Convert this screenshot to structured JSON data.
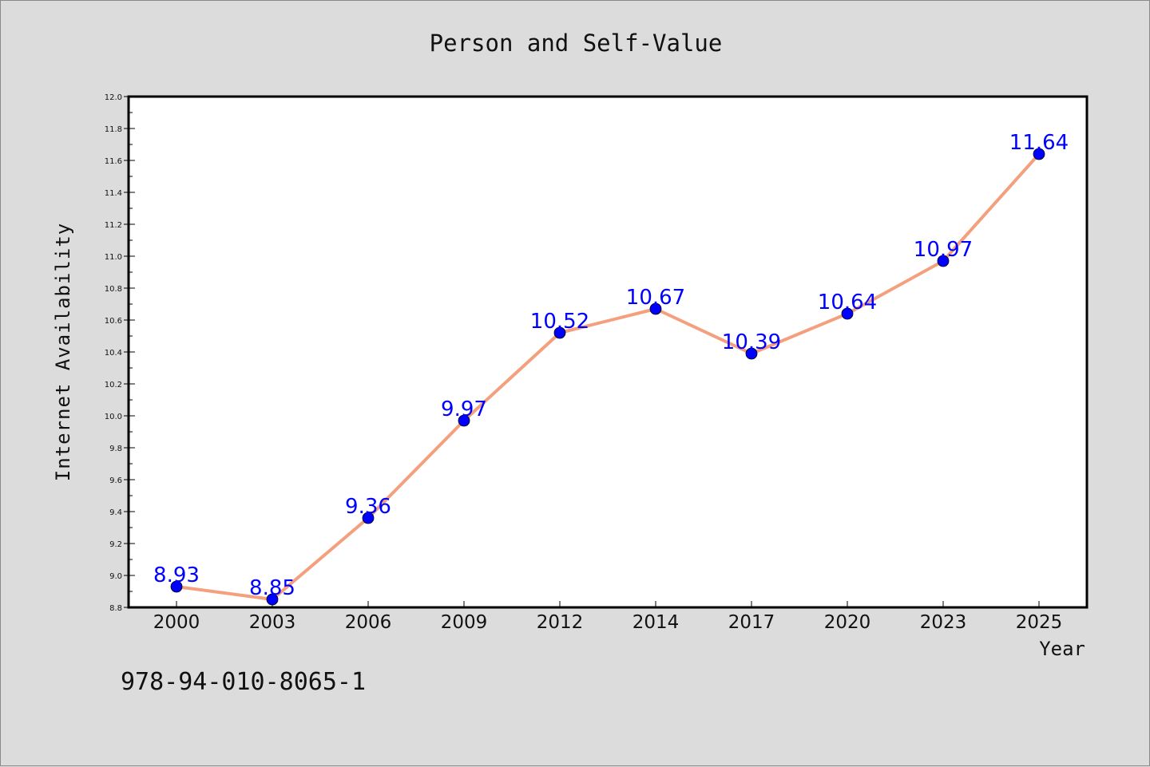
{
  "chart_data": {
    "type": "line",
    "title": "Person and Self-Value",
    "xlabel": "Year",
    "ylabel": "Internet Availability",
    "categories": [
      "2000",
      "2003",
      "2006",
      "2009",
      "2012",
      "2014",
      "2017",
      "2020",
      "2023",
      "2025"
    ],
    "series": [
      {
        "values": [
          8.93,
          8.85,
          9.36,
          9.97,
          10.52,
          10.67,
          10.39,
          10.64,
          10.97,
          11.64
        ],
        "data_labels": [
          "8.93",
          "8.85",
          "9.36",
          "9.97",
          "10.52",
          "10.67",
          "10.39",
          "10.64",
          "10.97",
          "11.64"
        ]
      }
    ],
    "ylim": [
      8.8,
      12.0
    ],
    "yticks": [
      "8.8",
      "9.0",
      "9.2",
      "9.4",
      "9.6",
      "9.8",
      "10.0",
      "10.2",
      "10.4",
      "10.6",
      "10.8",
      "11.0",
      "11.2",
      "11.4",
      "11.6",
      "11.8",
      "12.0"
    ],
    "grid": false,
    "line_color": "#f4a07e",
    "marker_color": "#0000ff",
    "label_color": "#0000ff",
    "background_color": "#dcdcdc",
    "plot_background": "#ffffff"
  },
  "annotation": "978-94-010-8065-1"
}
